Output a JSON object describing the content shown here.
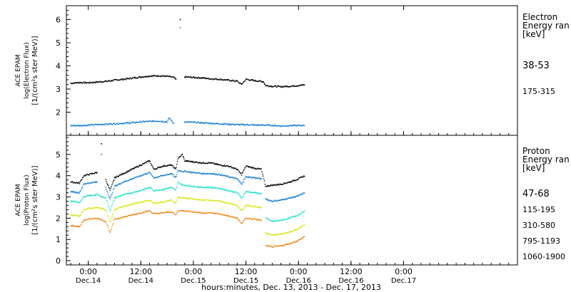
{
  "chart_data": [
    {
      "type": "scatter",
      "panel": "electron",
      "ylabel_lines": [
        "ACE EPAM",
        "log(Electron Flux)",
        "[1/(cm²s ster MeV)]"
      ],
      "ylim": [
        1.0,
        6.6
      ],
      "yticks": [
        "2",
        "3",
        "4",
        "5",
        "6"
      ],
      "ytick_values": [
        2,
        3,
        4,
        5,
        6
      ],
      "legend_title": [
        "Electron",
        "Energy ran",
        "[keV]"
      ],
      "series": [
        {
          "name": "38-53",
          "color": "#000000",
          "points": [
            [
              -4,
              3.25
            ],
            [
              -2,
              3.28
            ],
            [
              0,
              3.27
            ],
            [
              2,
              3.3
            ],
            [
              4,
              3.33
            ],
            [
              6,
              3.38
            ],
            [
              8,
              3.42
            ],
            [
              10,
              3.47
            ],
            [
              12,
              3.52
            ],
            [
              14,
              3.56
            ],
            [
              16,
              3.57
            ],
            [
              18,
              3.55
            ],
            [
              19.5,
              3.5
            ],
            [
              20,
              3.42
            ],
            [
              21,
              6.0
            ],
            [
              22,
              3.52
            ],
            [
              24,
              3.5
            ],
            [
              26,
              3.48
            ],
            [
              28,
              3.44
            ],
            [
              30,
              3.42
            ],
            [
              32,
              3.38
            ],
            [
              34,
              3.34
            ],
            [
              35,
              3.2
            ],
            [
              36,
              3.42
            ],
            [
              38,
              3.36
            ],
            [
              40,
              3.32
            ],
            [
              40.5,
              3.15
            ],
            [
              42,
              3.12
            ],
            [
              44,
              3.1
            ],
            [
              46,
              3.12
            ],
            [
              48,
              3.15
            ],
            [
              49.5,
              3.18
            ]
          ]
        },
        {
          "name": "175-315",
          "color": "#1a7fd6",
          "points": [
            [
              -4,
              1.42
            ],
            [
              -2,
              1.42
            ],
            [
              0,
              1.44
            ],
            [
              2,
              1.46
            ],
            [
              4,
              1.48
            ],
            [
              6,
              1.5
            ],
            [
              8,
              1.52
            ],
            [
              10,
              1.54
            ],
            [
              12,
              1.58
            ],
            [
              14,
              1.6
            ],
            [
              16,
              1.62
            ],
            [
              18,
              1.58
            ],
            [
              18.5,
              1.75
            ],
            [
              19.5,
              1.52
            ],
            [
              21,
              5.65
            ],
            [
              22,
              1.58
            ],
            [
              24,
              1.56
            ],
            [
              26,
              1.54
            ],
            [
              28,
              1.52
            ],
            [
              30,
              1.5
            ],
            [
              32,
              1.48
            ],
            [
              34,
              1.46
            ],
            [
              36,
              1.46
            ],
            [
              38,
              1.44
            ],
            [
              40,
              1.44
            ],
            [
              42,
              1.43
            ],
            [
              44,
              1.4
            ],
            [
              46,
              1.42
            ],
            [
              48,
              1.42
            ],
            [
              49.5,
              1.44
            ]
          ]
        }
      ]
    },
    {
      "type": "scatter",
      "panel": "proton",
      "ylabel_lines": [
        "ACE EPAM",
        "log(Proton Flux)",
        "[1/(cm²s ster MeV)]"
      ],
      "ylim": [
        -0.2,
        5.9
      ],
      "yticks": [
        "0",
        "1",
        "2",
        "3",
        "4",
        "5"
      ],
      "ytick_values": [
        0,
        1,
        2,
        3,
        4,
        5
      ],
      "legend_title": [
        "Proton",
        "Energy ran",
        "[keV]"
      ],
      "series": [
        {
          "name": "47-68",
          "color": "#000000",
          "points": [
            [
              -4,
              3.7
            ],
            [
              -2,
              3.65
            ],
            [
              -1,
              4.0
            ],
            [
              0,
              4.05
            ],
            [
              2,
              4.15
            ],
            [
              3,
              5.5
            ],
            [
              4,
              3.8
            ],
            [
              5,
              3.3
            ],
            [
              6,
              3.9
            ],
            [
              8,
              4.1
            ],
            [
              10,
              4.3
            ],
            [
              12,
              4.5
            ],
            [
              14,
              4.7
            ],
            [
              15,
              4.3
            ],
            [
              17,
              4.45
            ],
            [
              19,
              4.5
            ],
            [
              20,
              4.3
            ],
            [
              20.5,
              4.8
            ],
            [
              21.5,
              5.0
            ],
            [
              22,
              4.7
            ],
            [
              24,
              4.65
            ],
            [
              26,
              4.6
            ],
            [
              28,
              4.6
            ],
            [
              30,
              4.5
            ],
            [
              32,
              4.45
            ],
            [
              34,
              4.3
            ],
            [
              35,
              4.05
            ],
            [
              36,
              4.45
            ],
            [
              38,
              4.35
            ],
            [
              39.5,
              4.3
            ],
            [
              40.5,
              3.5
            ],
            [
              42,
              3.55
            ],
            [
              44,
              3.6
            ],
            [
              46,
              3.7
            ],
            [
              48,
              3.85
            ],
            [
              49.5,
              4.0
            ]
          ]
        },
        {
          "name": "115-195",
          "color": "#1a7fd6",
          "points": [
            [
              -4,
              3.25
            ],
            [
              -2,
              3.2
            ],
            [
              -1,
              3.6
            ],
            [
              0,
              3.65
            ],
            [
              2,
              3.7
            ],
            [
              3,
              5.0
            ],
            [
              4,
              3.45
            ],
            [
              5,
              2.9
            ],
            [
              6,
              3.5
            ],
            [
              8,
              3.7
            ],
            [
              10,
              3.85
            ],
            [
              12,
              4.0
            ],
            [
              14,
              4.15
            ],
            [
              15,
              3.9
            ],
            [
              17,
              4.0
            ],
            [
              19,
              4.1
            ],
            [
              20,
              3.9
            ],
            [
              20.5,
              4.25
            ],
            [
              21.5,
              4.2
            ],
            [
              22,
              4.2
            ],
            [
              24,
              4.15
            ],
            [
              26,
              4.1
            ],
            [
              28,
              4.1
            ],
            [
              30,
              4.05
            ],
            [
              32,
              3.95
            ],
            [
              34,
              3.85
            ],
            [
              35,
              3.6
            ],
            [
              36,
              3.95
            ],
            [
              38,
              3.9
            ],
            [
              39.5,
              3.85
            ],
            [
              40.5,
              2.9
            ],
            [
              42,
              2.8
            ],
            [
              44,
              2.85
            ],
            [
              46,
              2.95
            ],
            [
              48,
              3.05
            ],
            [
              49.5,
              3.2
            ]
          ]
        },
        {
          "name": "310-580",
          "color": "#29e0c8",
          "points": [
            [
              -4,
              2.8
            ],
            [
              -2,
              2.75
            ],
            [
              -1,
              3.0
            ],
            [
              0,
              3.05
            ],
            [
              2,
              3.1
            ],
            [
              4,
              2.95
            ],
            [
              5,
              2.35
            ],
            [
              6,
              2.95
            ],
            [
              8,
              3.1
            ],
            [
              10,
              3.2
            ],
            [
              12,
              3.3
            ],
            [
              14,
              3.45
            ],
            [
              15,
              3.3
            ],
            [
              17,
              3.35
            ],
            [
              19,
              3.45
            ],
            [
              20,
              3.3
            ],
            [
              20.5,
              3.7
            ],
            [
              21.5,
              3.55
            ],
            [
              22,
              3.55
            ],
            [
              24,
              3.5
            ],
            [
              26,
              3.45
            ],
            [
              28,
              3.45
            ],
            [
              30,
              3.4
            ],
            [
              32,
              3.3
            ],
            [
              34,
              3.2
            ],
            [
              35,
              2.95
            ],
            [
              36,
              3.25
            ],
            [
              38,
              3.2
            ],
            [
              39.5,
              3.15
            ],
            [
              40.5,
              2.0
            ],
            [
              42,
              1.85
            ],
            [
              44,
              1.9
            ],
            [
              46,
              2.0
            ],
            [
              48,
              2.15
            ],
            [
              49.5,
              2.35
            ]
          ]
        },
        {
          "name": "795-1193",
          "color": "#d6e81a",
          "points": [
            [
              -4,
              2.15
            ],
            [
              -2,
              2.1
            ],
            [
              -1,
              2.4
            ],
            [
              0,
              2.45
            ],
            [
              2,
              2.5
            ],
            [
              4,
              2.4
            ],
            [
              5,
              1.8
            ],
            [
              6,
              2.4
            ],
            [
              8,
              2.55
            ],
            [
              10,
              2.65
            ],
            [
              12,
              2.75
            ],
            [
              14,
              2.85
            ],
            [
              15,
              2.7
            ],
            [
              17,
              2.75
            ],
            [
              19,
              2.85
            ],
            [
              20,
              2.7
            ],
            [
              20.5,
              3.0
            ],
            [
              21.5,
              2.95
            ],
            [
              22,
              2.95
            ],
            [
              24,
              2.9
            ],
            [
              26,
              2.85
            ],
            [
              28,
              2.85
            ],
            [
              30,
              2.8
            ],
            [
              32,
              2.7
            ],
            [
              34,
              2.6
            ],
            [
              35,
              2.35
            ],
            [
              36,
              2.6
            ],
            [
              38,
              2.55
            ],
            [
              39.5,
              2.5
            ],
            [
              40.5,
              1.3
            ],
            [
              42,
              1.2
            ],
            [
              44,
              1.25
            ],
            [
              46,
              1.35
            ],
            [
              48,
              1.5
            ],
            [
              49.5,
              1.7
            ]
          ]
        },
        {
          "name": "1060-1900",
          "color": "#f08a1e",
          "points": [
            [
              -4,
              1.65
            ],
            [
              -2,
              1.6
            ],
            [
              -1,
              1.9
            ],
            [
              0,
              1.95
            ],
            [
              2,
              2.0
            ],
            [
              4,
              1.85
            ],
            [
              5,
              1.3
            ],
            [
              6,
              1.95
            ],
            [
              8,
              2.05
            ],
            [
              10,
              2.15
            ],
            [
              12,
              2.25
            ],
            [
              14,
              2.35
            ],
            [
              15,
              2.2
            ],
            [
              17,
              2.25
            ],
            [
              19,
              2.3
            ],
            [
              20,
              2.15
            ],
            [
              20.5,
              2.35
            ],
            [
              21.5,
              2.35
            ],
            [
              22,
              2.35
            ],
            [
              24,
              2.3
            ],
            [
              26,
              2.25
            ],
            [
              28,
              2.25
            ],
            [
              30,
              2.2
            ],
            [
              32,
              2.1
            ],
            [
              34,
              2.0
            ],
            [
              35,
              1.75
            ],
            [
              36,
              2.0
            ],
            [
              38,
              1.95
            ],
            [
              39.5,
              1.9
            ],
            [
              40.5,
              0.7
            ],
            [
              42,
              0.65
            ],
            [
              44,
              0.7
            ],
            [
              46,
              0.8
            ],
            [
              48,
              0.95
            ],
            [
              49.5,
              1.15
            ]
          ]
        }
      ]
    }
  ],
  "xaxis": {
    "xlim": [
      -5,
      98
    ],
    "ticks": [
      {
        "x": 0,
        "line1": "0:00",
        "line2": "Dec.14"
      },
      {
        "x": 12,
        "line1": "12:00",
        "line2": "Dec.14"
      },
      {
        "x": 24,
        "line1": "0:00",
        "line2": "Dec.15"
      },
      {
        "x": 36,
        "line1": "12:00",
        "line2": "Dec.15"
      },
      {
        "x": 48,
        "line1": "0:00",
        "line2": "Dec.16"
      },
      {
        "x": 60,
        "line1": "12:00",
        "line2": "Dec.16"
      },
      {
        "x": 72,
        "line1": "0:00",
        "line2": "Dec.17"
      }
    ],
    "label": "hours:minutes, Dec. 13, 2013 - Dec. 17, 2013"
  }
}
